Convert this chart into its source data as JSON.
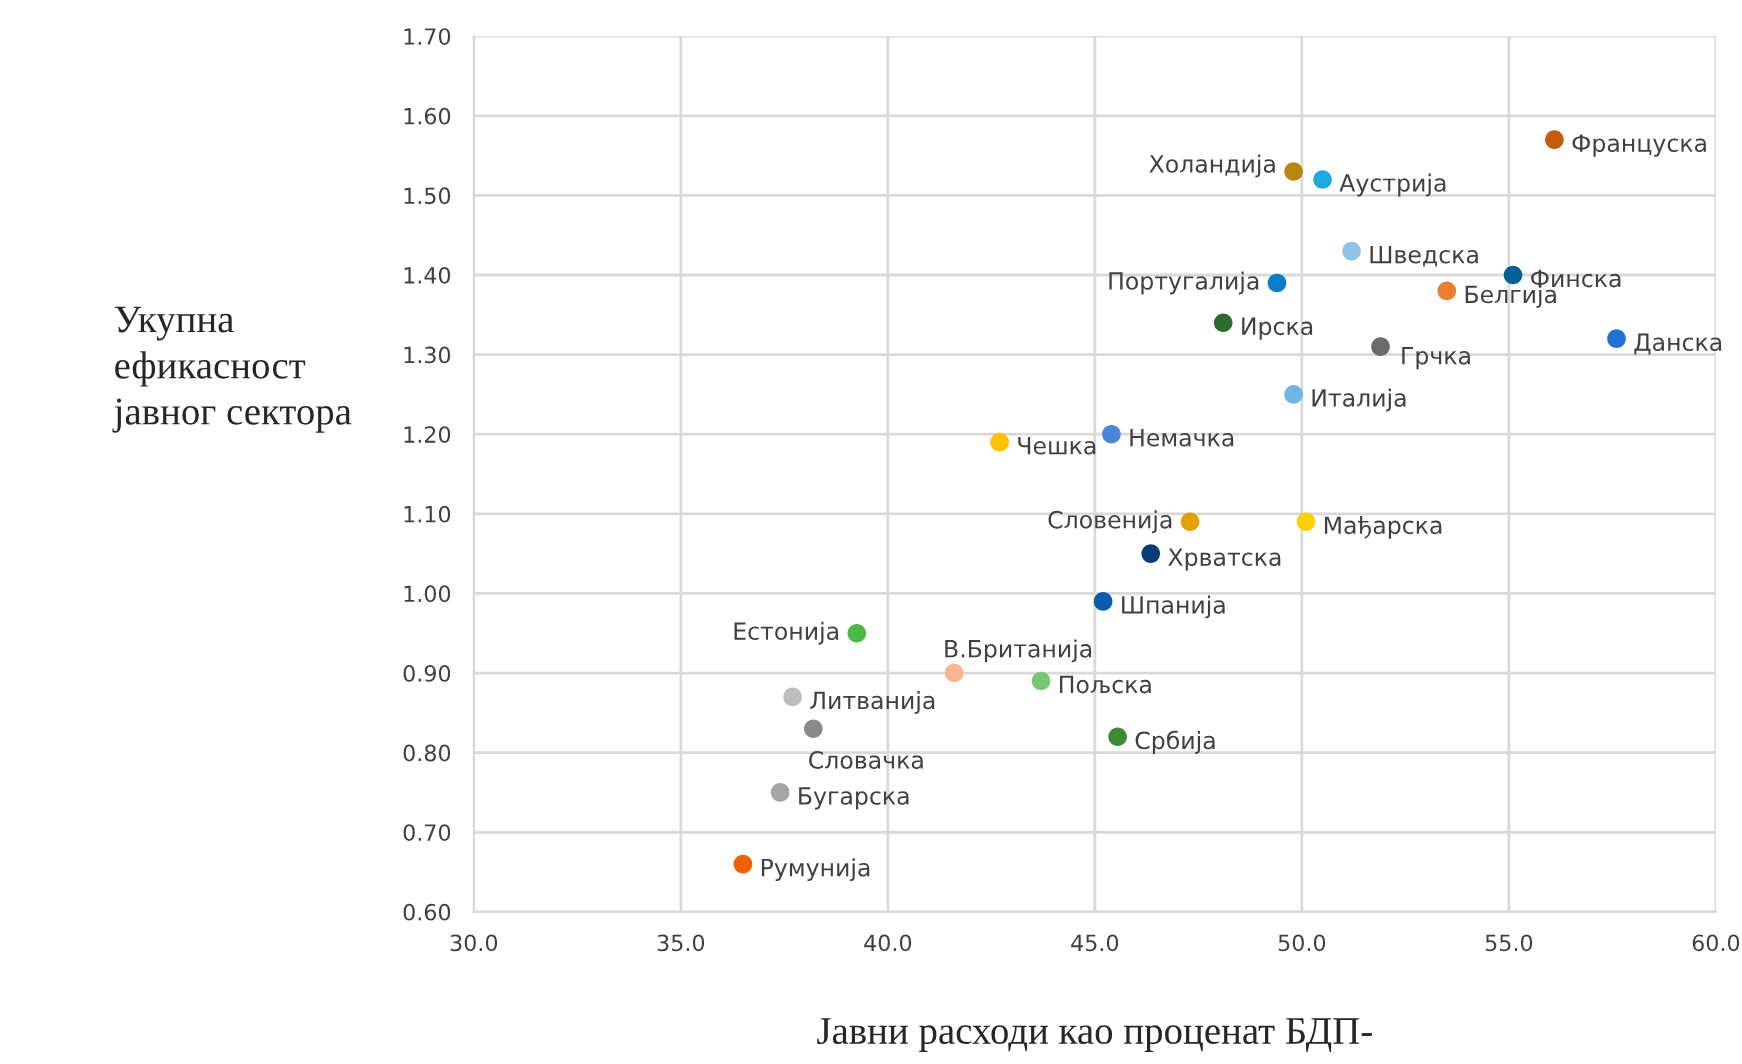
{
  "chart_data": {
    "type": "scatter",
    "xlabel": "Јавни расходи као проценат БДП-",
    "ylabel": "Укупна\nефикасност\nјавног сектора",
    "xlim": [
      30,
      60
    ],
    "ylim": [
      0.6,
      1.7
    ],
    "xticks": [
      {
        "value": 30,
        "label": "30.0"
      },
      {
        "value": 35,
        "label": "35.0"
      },
      {
        "value": 40,
        "label": "40.0"
      },
      {
        "value": 45,
        "label": "45.0"
      },
      {
        "value": 50,
        "label": "50.0"
      },
      {
        "value": 55,
        "label": "55.0"
      },
      {
        "value": 60,
        "label": "60.0"
      }
    ],
    "yticks": [
      {
        "value": 0.6,
        "label": "0.60"
      },
      {
        "value": 0.7,
        "label": "0.70"
      },
      {
        "value": 0.8,
        "label": "0.80"
      },
      {
        "value": 0.9,
        "label": "0.90"
      },
      {
        "value": 1.0,
        "label": "1.00"
      },
      {
        "value": 1.1,
        "label": "1.10"
      },
      {
        "value": 1.2,
        "label": "1.20"
      },
      {
        "value": 1.3,
        "label": "1.30"
      },
      {
        "value": 1.4,
        "label": "1.40"
      },
      {
        "value": 1.5,
        "label": "1.50"
      },
      {
        "value": 1.6,
        "label": "1.60"
      },
      {
        "value": 1.7,
        "label": "1.70"
      }
    ],
    "grid": true,
    "legend": false,
    "marker": "circle",
    "series": [
      {
        "name": "Француска",
        "color": "#c55a11",
        "x": [
          56.1
        ],
        "values": [
          1.57
        ]
      },
      {
        "name": "Холандија",
        "color": "#b8860b",
        "x": [
          49.8
        ],
        "values": [
          1.53
        ]
      },
      {
        "name": "Аустрија",
        "color": "#1fa7e0",
        "x": [
          50.5
        ],
        "values": [
          1.52
        ]
      },
      {
        "name": "Шведска",
        "color": "#8fc3e8",
        "x": [
          51.2
        ],
        "values": [
          1.43
        ]
      },
      {
        "name": "Финска",
        "color": "#005f99",
        "x": [
          55.1
        ],
        "values": [
          1.4
        ]
      },
      {
        "name": "Португалија",
        "color": "#0a7ccc",
        "x": [
          49.4
        ],
        "values": [
          1.39
        ]
      },
      {
        "name": "Белгија",
        "color": "#ed7d31",
        "x": [
          53.5
        ],
        "values": [
          1.38
        ]
      },
      {
        "name": "Ирска",
        "color": "#2e6b2e",
        "x": [
          48.1
        ],
        "values": [
          1.34
        ]
      },
      {
        "name": "Грчка",
        "color": "#6b6b6b",
        "x": [
          51.9
        ],
        "values": [
          1.31
        ]
      },
      {
        "name": "Данска",
        "color": "#1f72d0",
        "x": [
          57.6
        ],
        "values": [
          1.32
        ]
      },
      {
        "name": "Италија",
        "color": "#6fb6e6",
        "x": [
          49.8
        ],
        "values": [
          1.25
        ]
      },
      {
        "name": "Немачка",
        "color": "#4a86d6",
        "x": [
          45.4
        ],
        "values": [
          1.2
        ]
      },
      {
        "name": "Чешка",
        "color": "#ffc000",
        "x": [
          42.7
        ],
        "values": [
          1.19
        ]
      },
      {
        "name": "Словенија",
        "color": "#e0a000",
        "x": [
          47.3
        ],
        "values": [
          1.09
        ]
      },
      {
        "name": "Мађарска",
        "color": "#ffd000",
        "x": [
          50.1
        ],
        "values": [
          1.09
        ]
      },
      {
        "name": "Хрватска",
        "color": "#0b3d75",
        "x": [
          46.35
        ],
        "values": [
          1.05
        ]
      },
      {
        "name": "Шпанија",
        "color": "#0b5cad",
        "x": [
          45.2
        ],
        "values": [
          0.99
        ]
      },
      {
        "name": "Естонија",
        "color": "#4cb848",
        "x": [
          39.25
        ],
        "values": [
          0.95
        ]
      },
      {
        "name": "В.Британија",
        "color": "#fbb490",
        "x": [
          41.6
        ],
        "values": [
          0.9
        ]
      },
      {
        "name": "Пољска",
        "color": "#7cc576",
        "x": [
          43.7
        ],
        "values": [
          0.89
        ]
      },
      {
        "name": "Литванија",
        "color": "#bdbdbd",
        "x": [
          37.7
        ],
        "values": [
          0.87
        ]
      },
      {
        "name": "Словачка",
        "color": "#8a8a8a",
        "x": [
          38.2
        ],
        "values": [
          0.83
        ]
      },
      {
        "name": "Србија",
        "color": "#3a8c34",
        "x": [
          45.55
        ],
        "values": [
          0.82
        ]
      },
      {
        "name": "Бугарска",
        "color": "#a5a5a5",
        "x": [
          37.4
        ],
        "values": [
          0.75
        ]
      },
      {
        "name": "Румунија",
        "color": "#f06000",
        "x": [
          36.5
        ],
        "values": [
          0.66
        ]
      }
    ]
  }
}
